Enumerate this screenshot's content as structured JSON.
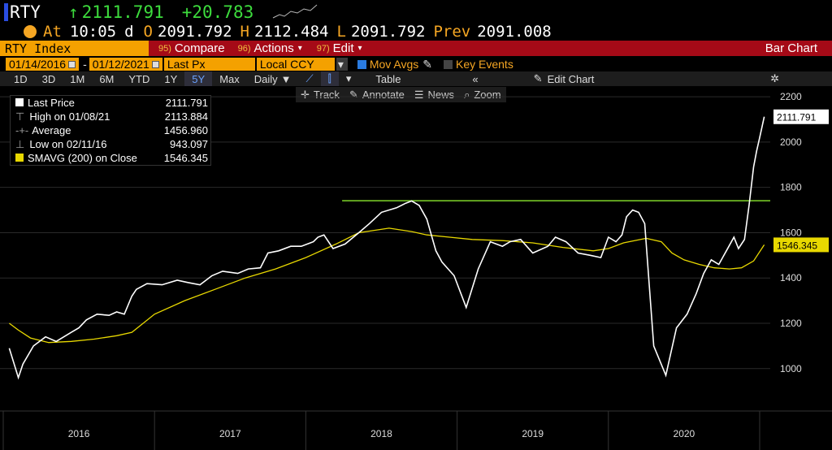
{
  "quote": {
    "ticker": "RTY",
    "arrow": "↑",
    "last": "2111.791",
    "change": "+20.783",
    "at_label": "At",
    "time": "10:05",
    "d_label": "d",
    "o_label": "O",
    "open": "2091.792",
    "h_label": "H",
    "high": "2112.484",
    "l_label": "L",
    "low": "2091.792",
    "prev_label": "Prev",
    "prev": "2091.008"
  },
  "menu": {
    "security": "RTY Index",
    "compare_num": "95)",
    "compare": "Compare",
    "actions_num": "96)",
    "actions": "Actions",
    "edit_num": "97)",
    "edit": "Edit",
    "view": "Bar Chart"
  },
  "settings": {
    "start": "01/14/2016",
    "end": "01/12/2021",
    "field": "Last Px",
    "currency": "Local CCY",
    "mov_avgs": "Mov Avgs",
    "key_events": "Key Events"
  },
  "toolbar": {
    "periods": [
      "1D",
      "3D",
      "1M",
      "6M",
      "YTD",
      "1Y",
      "5Y",
      "Max"
    ],
    "selected": "5Y",
    "freq": "Daily",
    "table": "Table",
    "edit_chart": "Edit Chart"
  },
  "tools": [
    "Track",
    "Annotate",
    "News",
    "Zoom"
  ],
  "legend": {
    "rows": [
      {
        "label": "Last Price",
        "value": "2111.791"
      },
      {
        "label": "High on 01/08/21",
        "value": "2113.884"
      },
      {
        "label": "Average",
        "value": "1456.960"
      },
      {
        "label": "Low on 02/11/16",
        "value": "943.097"
      },
      {
        "label": "SMAVG (200)  on Close",
        "value": "1546.345"
      }
    ]
  },
  "chart_data": {
    "type": "line",
    "x_labels": [
      "2016",
      "2017",
      "2018",
      "2019",
      "2020"
    ],
    "y_ticks": [
      1000,
      1200,
      1400,
      1600,
      1800,
      2000,
      2200
    ],
    "ylim": [
      870,
      2240
    ],
    "last_price_label": "2111.791",
    "sma_label": "1546.345",
    "horizontal_line": 1741,
    "colors": {
      "price": "#ffffff",
      "sma": "#e8d800",
      "hline": "#7fd62a",
      "grid": "#2a2a2a"
    },
    "series": [
      {
        "name": "Last Price",
        "x": [
          2016.04,
          2016.1,
          2016.13,
          2016.2,
          2016.28,
          2016.35,
          2016.45,
          2016.5,
          2016.55,
          2016.62,
          2016.7,
          2016.75,
          2016.8,
          2016.85,
          2016.88,
          2016.95,
          2017.05,
          2017.15,
          2017.22,
          2017.3,
          2017.38,
          2017.45,
          2017.55,
          2017.62,
          2017.7,
          2017.75,
          2017.82,
          2017.9,
          2017.97,
          2018.05,
          2018.08,
          2018.12,
          2018.18,
          2018.26,
          2018.35,
          2018.42,
          2018.5,
          2018.6,
          2018.66,
          2018.7,
          2018.75,
          2018.8,
          2018.86,
          2018.9,
          2018.98,
          2019.06,
          2019.14,
          2019.22,
          2019.3,
          2019.35,
          2019.42,
          2019.5,
          2019.6,
          2019.65,
          2019.72,
          2019.8,
          2019.88,
          2019.95,
          2020.0,
          2020.05,
          2020.09,
          2020.12,
          2020.16,
          2020.2,
          2020.24,
          2020.3,
          2020.38,
          2020.45,
          2020.52,
          2020.58,
          2020.63,
          2020.68,
          2020.73,
          2020.78,
          2020.83,
          2020.86,
          2020.9,
          2020.93,
          2020.96,
          2020.98,
          2021.0,
          2021.03
        ],
        "y": [
          1090,
          960,
          1020,
          1100,
          1140,
          1120,
          1160,
          1180,
          1215,
          1240,
          1235,
          1250,
          1240,
          1320,
          1350,
          1375,
          1370,
          1390,
          1380,
          1370,
          1410,
          1430,
          1420,
          1440,
          1445,
          1510,
          1520,
          1540,
          1540,
          1560,
          1580,
          1590,
          1530,
          1550,
          1600,
          1640,
          1690,
          1710,
          1730,
          1740,
          1720,
          1660,
          1520,
          1470,
          1410,
          1270,
          1440,
          1560,
          1540,
          1560,
          1570,
          1510,
          1540,
          1580,
          1560,
          1510,
          1500,
          1490,
          1580,
          1560,
          1590,
          1670,
          1700,
          1690,
          1640,
          1100,
          970,
          1180,
          1240,
          1330,
          1420,
          1480,
          1460,
          1520,
          1580,
          1530,
          1570,
          1720,
          1890,
          1960,
          2020,
          2111.791
        ]
      },
      {
        "name": "SMAVG (200)",
        "x": [
          2016.04,
          2016.1,
          2016.18,
          2016.3,
          2016.45,
          2016.6,
          2016.75,
          2016.85,
          2017.0,
          2017.2,
          2017.4,
          2017.6,
          2017.8,
          2018.0,
          2018.2,
          2018.35,
          2018.55,
          2018.7,
          2018.8,
          2018.95,
          2019.1,
          2019.3,
          2019.5,
          2019.7,
          2019.9,
          2020.0,
          2020.1,
          2020.25,
          2020.35,
          2020.42,
          2020.5,
          2020.6,
          2020.7,
          2020.8,
          2020.88,
          2020.96,
          2021.03
        ],
        "y": [
          1200,
          1170,
          1135,
          1115,
          1120,
          1130,
          1145,
          1160,
          1240,
          1300,
          1350,
          1400,
          1440,
          1490,
          1550,
          1600,
          1620,
          1605,
          1590,
          1580,
          1570,
          1565,
          1555,
          1535,
          1520,
          1530,
          1555,
          1575,
          1560,
          1510,
          1480,
          1460,
          1445,
          1440,
          1445,
          1475,
          1546.345
        ]
      }
    ]
  }
}
